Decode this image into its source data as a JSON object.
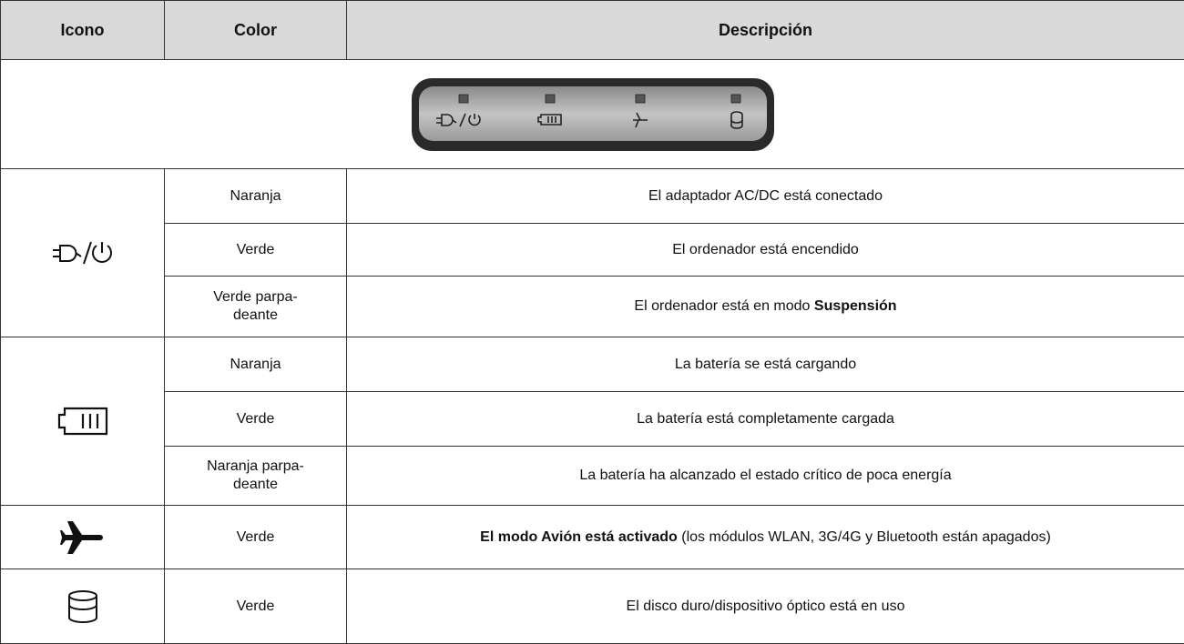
{
  "table": {
    "headers": [
      "Icono",
      "Color",
      "Descripción"
    ],
    "groups": [
      {
        "rows": [
          {
            "color": "Naranja",
            "description": [
              {
                "text": "El adaptador AC/DC está conectado",
                "bold": false
              }
            ]
          },
          {
            "color": "Verde",
            "description": [
              {
                "text": "El ordenador está encendido",
                "bold": false
              }
            ]
          },
          {
            "color": "Verde parpa-\ndeante",
            "description": [
              {
                "text": "El ordenador está en modo ",
                "bold": false
              },
              {
                "text": "Suspensión",
                "bold": true
              }
            ]
          }
        ]
      },
      {
        "rows": [
          {
            "color": "Naranja",
            "description": [
              {
                "text": "La batería se está cargando",
                "bold": false
              }
            ]
          },
          {
            "color": "Verde",
            "description": [
              {
                "text": "La batería está completamente cargada",
                "bold": false
              }
            ]
          },
          {
            "color": "Naranja parpa-\ndeante",
            "description": [
              {
                "text": "La batería ha alcanzado el estado crítico de poca energía",
                "bold": false
              }
            ]
          }
        ]
      },
      {
        "rows": [
          {
            "color": "Verde",
            "description": [
              {
                "text": "El modo Avión está activado",
                "bold": true
              },
              {
                "text": " (los módulos WLAN, 3G/4G y Bluetooth están apagados)",
                "bold": false
              }
            ]
          }
        ]
      },
      {
        "rows": [
          {
            "color": "Verde",
            "description": [
              {
                "text": "El disco duro/dispositivo óptico está en uso",
                "bold": false
              }
            ]
          }
        ]
      }
    ]
  }
}
